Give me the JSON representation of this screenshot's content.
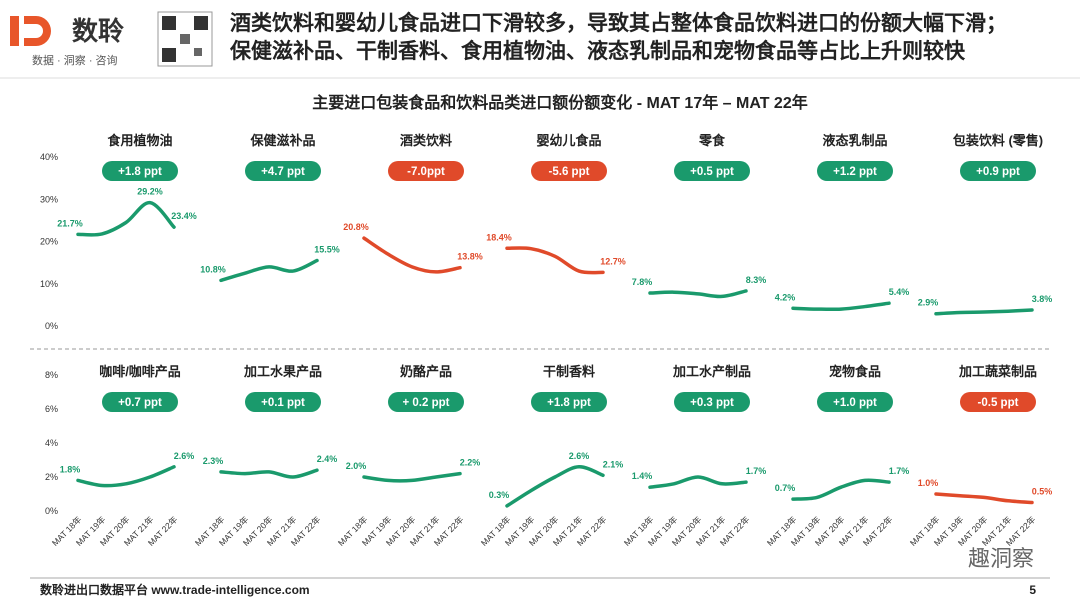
{
  "header": {
    "brand": "数聆",
    "tagline": "数据 · 洞察 · 咨询",
    "headline": [
      "酒类饮料和婴幼儿食品进口下滑较多，导致其占整体食品饮料进口的份额大幅下滑；",
      "保健滋补品、干制香料、食用植物油、液态乳制品和宠物食品等占比上升则较快"
    ]
  },
  "figure_title": "主要进口包装食品和饮料品类进口额份额变化 - MAT 17年 – MAT 22年",
  "chart_data": [
    {
      "type": "line",
      "title": "食用植物油",
      "annotation": "+1.8 ppt",
      "color": "#1a9a6c",
      "values": [
        21.7,
        21.8,
        24.5,
        29.2,
        23.4
      ],
      "value_labels": [
        "21.7%",
        null,
        null,
        "29.2%",
        "23.4%"
      ],
      "ylim": [
        0,
        40
      ],
      "yticks": [
        {
          "value": 0,
          "label": "0%"
        },
        {
          "value": 10,
          "label": "10%"
        },
        {
          "value": 20,
          "label": "20%"
        },
        {
          "value": 30,
          "label": "30%"
        },
        {
          "value": 40,
          "label": "40%"
        }
      ]
    },
    {
      "type": "line",
      "title": "保健滋补品",
      "annotation": "+4.7 ppt",
      "color": "#1a9a6c",
      "values": [
        10.8,
        12.5,
        14,
        13,
        15.5
      ],
      "value_labels": [
        "10.8%",
        null,
        null,
        null,
        "15.5%"
      ],
      "ylim": [
        0,
        40
      ]
    },
    {
      "type": "line",
      "title": "酒类饮料",
      "annotation": "-7.0ppt",
      "color": "#e04a2a",
      "values": [
        20.8,
        17,
        14,
        12.8,
        13.8
      ],
      "value_labels": [
        "20.8%",
        null,
        null,
        null,
        "13.8%"
      ],
      "ylim": [
        0,
        40
      ]
    },
    {
      "type": "line",
      "title": "婴幼儿食品",
      "annotation": "-5.6 ppt",
      "color": "#e04a2a",
      "values": [
        18.4,
        18.3,
        16.5,
        13,
        12.7
      ],
      "value_labels": [
        "18.4%",
        null,
        null,
        null,
        "12.7%"
      ],
      "ylim": [
        0,
        40
      ]
    },
    {
      "type": "line",
      "title": "零食",
      "annotation": "+0.5 ppt",
      "color": "#1a9a6c",
      "values": [
        7.8,
        8,
        7.6,
        7,
        8.3
      ],
      "value_labels": [
        "7.8%",
        null,
        null,
        null,
        "8.3%"
      ],
      "ylim": [
        0,
        40
      ]
    },
    {
      "type": "line",
      "title": "液态乳制品",
      "annotation": "+1.2 ppt",
      "color": "#1a9a6c",
      "values": [
        4.2,
        4,
        4,
        4.6,
        5.4
      ],
      "value_labels": [
        "4.2%",
        null,
        null,
        null,
        "5.4%"
      ],
      "ylim": [
        0,
        40
      ]
    },
    {
      "type": "line",
      "title": "包装饮料 (零售)",
      "annotation": "+0.9 ppt",
      "color": "#1a9a6c",
      "values": [
        2.9,
        3.2,
        3.3,
        3.5,
        3.8
      ],
      "value_labels": [
        "2.9%",
        null,
        null,
        null,
        "3.8%"
      ],
      "ylim": [
        0,
        40
      ]
    },
    {
      "type": "line",
      "title": "咖啡/咖啡产品",
      "annotation": "+0.7 ppt",
      "color": "#1a9a6c",
      "categories": [
        "MAT 18年",
        "MAT 19年",
        "MAT 20年",
        "MAT 21年",
        "MAT 22年"
      ],
      "values": [
        1.8,
        1.5,
        1.6,
        2,
        2.6
      ],
      "value_labels": [
        "1.8%",
        null,
        null,
        null,
        "2.6%"
      ],
      "ylim": [
        0,
        8
      ],
      "yticks": [
        {
          "value": 0,
          "label": "0%"
        },
        {
          "value": 2,
          "label": "2%"
        },
        {
          "value": 4,
          "label": "4%"
        },
        {
          "value": 6,
          "label": "6%"
        },
        {
          "value": 8,
          "label": "8%"
        }
      ]
    },
    {
      "type": "line",
      "title": "加工水果产品",
      "annotation": "+0.1 ppt",
      "color": "#1a9a6c",
      "categories": [
        "MAT 18年",
        "MAT 19年",
        "MAT 20年",
        "MAT 21年",
        "MAT 22年"
      ],
      "values": [
        2.3,
        2.2,
        2.3,
        2,
        2.4
      ],
      "value_labels": [
        "2.3%",
        null,
        null,
        null,
        "2.4%"
      ],
      "ylim": [
        0,
        8
      ]
    },
    {
      "type": "line",
      "title": "奶酪产品",
      "annotation": "+ 0.2 ppt",
      "color": "#1a9a6c",
      "categories": [
        "MAT 18年",
        "MAT 19年",
        "MAT 20年",
        "MAT 21年",
        "MAT 22年"
      ],
      "values": [
        2,
        1.8,
        1.8,
        2,
        2.2
      ],
      "value_labels": [
        "2.0%",
        null,
        null,
        null,
        "2.2%"
      ],
      "ylim": [
        0,
        8
      ]
    },
    {
      "type": "line",
      "title": "干制香料",
      "annotation": "+1.8 ppt",
      "color": "#1a9a6c",
      "categories": [
        "MAT 18年",
        "MAT 19年",
        "MAT 20年",
        "MAT 21年",
        "MAT 22年"
      ],
      "values": [
        0.3,
        1.2,
        2,
        2.6,
        2.1
      ],
      "value_labels": [
        "0.3%",
        null,
        null,
        "2.6%",
        "2.1%"
      ],
      "ylim": [
        0,
        8
      ]
    },
    {
      "type": "line",
      "title": "加工水产制品",
      "annotation": "+0.3 ppt",
      "color": "#1a9a6c",
      "categories": [
        "MAT 18年",
        "MAT 19年",
        "MAT 20年",
        "MAT 21年",
        "MAT 22年"
      ],
      "values": [
        1.4,
        1.6,
        2,
        1.6,
        1.7
      ],
      "value_labels": [
        "1.4%",
        null,
        null,
        null,
        "1.7%"
      ],
      "ylim": [
        0,
        8
      ]
    },
    {
      "type": "line",
      "title": "宠物食品",
      "annotation": "+1.0 ppt",
      "color": "#1a9a6c",
      "categories": [
        "MAT 18年",
        "MAT 19年",
        "MAT 20年",
        "MAT 21年",
        "MAT 22年"
      ],
      "values": [
        0.7,
        0.8,
        1.4,
        1.8,
        1.7
      ],
      "value_labels": [
        "0.7%",
        null,
        null,
        null,
        "1.7%"
      ],
      "ylim": [
        0,
        8
      ]
    },
    {
      "type": "line",
      "title": "加工蔬菜制品",
      "annotation": "-0.5 ppt",
      "color": "#e04a2a",
      "categories": [
        "MAT 18年",
        "MAT 19年",
        "MAT 20年",
        "MAT 21年",
        "MAT 22年"
      ],
      "values": [
        1,
        0.9,
        0.8,
        0.6,
        0.5
      ],
      "value_labels": [
        "1.0%",
        null,
        null,
        null,
        "0.5%"
      ],
      "ylim": [
        0,
        8
      ]
    }
  ],
  "footer": {
    "source": "数聆进出口数据平台 www.trade-intelligence.com",
    "page": "5",
    "watermark": "趣洞察"
  }
}
